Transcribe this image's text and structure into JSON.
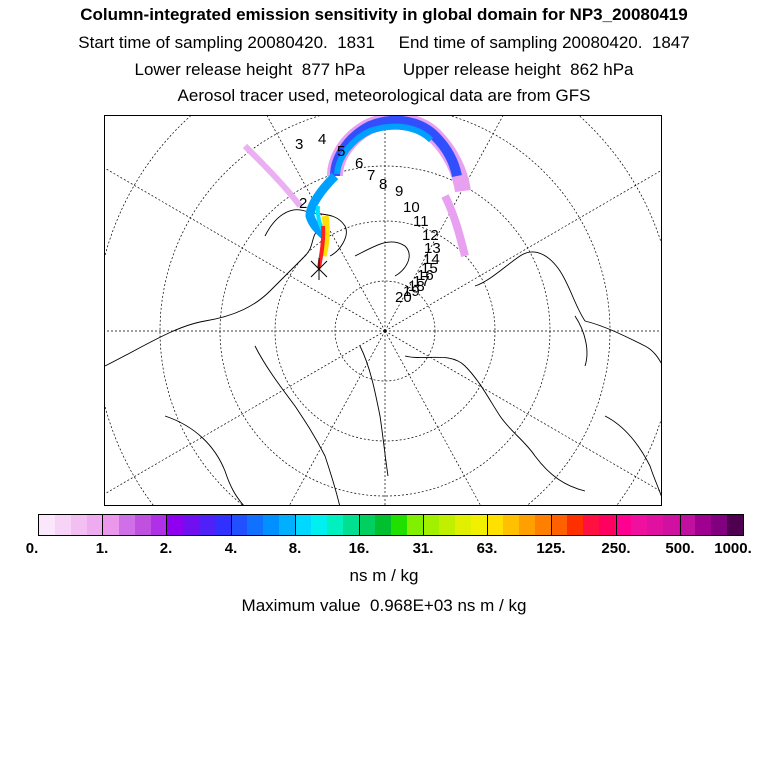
{
  "header": {
    "title": "Column-integrated emission sensitivity in global domain for NP3_20080419",
    "sampling": "Start time of sampling 20080420.  1831     End time of sampling 20080420.  1847",
    "release": "Lower release height  877 hPa        Upper release height  862 hPa",
    "tracer": "Aerosol tracer used, meteorological data are from GFS"
  },
  "map": {
    "projection": "north-polar-stereographic",
    "plume_colors": [
      "#e8a0f0",
      "#c050e0",
      "#3050ff",
      "#00a0ff",
      "#00e0ff",
      "#ffe000",
      "#ff2020"
    ],
    "day_labels": [
      "2",
      "3",
      "4",
      "5",
      "6",
      "7",
      "8",
      "9",
      "10",
      "11",
      "12",
      "13",
      "14",
      "15",
      "16",
      "17",
      "18",
      "19",
      "20"
    ]
  },
  "colorbar": {
    "colors": [
      "#fbe7fb",
      "#f7d3f7",
      "#f3bff3",
      "#efabef",
      "#eb97eb",
      "#d070e8",
      "#c050e0",
      "#b030e8",
      "#9000f0",
      "#7010f0",
      "#5020f8",
      "#3030ff",
      "#2050ff",
      "#1070ff",
      "#0090ff",
      "#00b0ff",
      "#00d8ff",
      "#00f0f0",
      "#00f0c0",
      "#00e090",
      "#00d060",
      "#00c030",
      "#20e000",
      "#80f000",
      "#a0f000",
      "#c0f000",
      "#e0f000",
      "#f0f000",
      "#ffe000",
      "#ffc000",
      "#ffa000",
      "#ff8000",
      "#ff6000",
      "#ff3000",
      "#ff1040",
      "#ff0060",
      "#ff0090",
      "#f010a0",
      "#e010a0",
      "#d010a0",
      "#c010a0",
      "#a00090",
      "#800080",
      "#500050"
    ],
    "ticks": [
      "0.",
      "1.",
      "2.",
      "4.",
      "8.",
      "16.",
      "31.",
      "63.",
      "125.",
      "250.",
      "500.",
      "1000."
    ],
    "unit": "ns m / kg"
  },
  "footer": {
    "max_value": "Maximum value  0.968E+03 ns m / kg"
  }
}
